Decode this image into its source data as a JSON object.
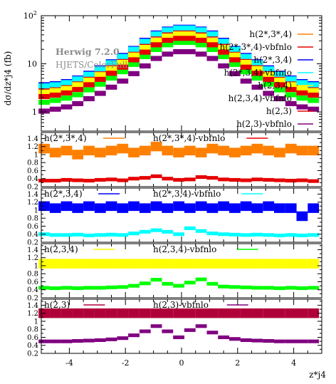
{
  "chart_data": {
    "type": "area",
    "generator": "Herwig 7.2.0",
    "subtitle": "HJETS/ColorFull",
    "ylabel": "dσ/dz*j4 (fb)",
    "xlabel": "z*j4",
    "x": [
      -4.9,
      -4.5,
      -4.1,
      -3.7,
      -3.3,
      -2.9,
      -2.5,
      -2.1,
      -1.7,
      -1.3,
      -0.9,
      -0.5,
      -0.1,
      0.3,
      0.7,
      1.1,
      1.5,
      1.9,
      2.3,
      2.7,
      3.1,
      3.5,
      3.9,
      4.3,
      4.7
    ],
    "xlim": [
      -5,
      5
    ],
    "xticks": [
      -4,
      -2,
      0,
      2,
      4
    ],
    "main_panel": {
      "yscale": "log",
      "ylim": [
        0.4,
        100
      ],
      "ytick_labels": [
        "1",
        "10",
        "10^2"
      ],
      "series": [
        {
          "name": "h(2*,3*,4)",
          "color": "#ff8000",
          "values": [
            3.4,
            3.6,
            4.0,
            4.8,
            6.0,
            7.8,
            10.5,
            14,
            20,
            29,
            41,
            50,
            55,
            55,
            50,
            41,
            29,
            20,
            14,
            10.5,
            7.8,
            6.0,
            4.8,
            4.0,
            3.6
          ]
        },
        {
          "name": "h(2*,3*,4)-vbfnlo",
          "color": "#e60000",
          "values": [
            3.3,
            3.5,
            3.9,
            4.6,
            5.8,
            7.5,
            10.1,
            13.5,
            19.3,
            28,
            40,
            48,
            53,
            53,
            48,
            40,
            28,
            19.3,
            13.5,
            10.1,
            7.5,
            5.8,
            4.6,
            3.9,
            3.5
          ]
        },
        {
          "name": "h(2*,3,4)",
          "color": "#0000ff",
          "values": [
            3.7,
            3.9,
            4.3,
            5.1,
            6.4,
            8.3,
            11.1,
            15,
            21,
            31,
            44,
            53,
            58,
            58,
            53,
            44,
            31,
            21,
            15,
            11.1,
            8.3,
            6.4,
            5.1,
            4.3,
            3.9
          ]
        },
        {
          "name": "h(2*,3,4)-vbfnlo",
          "color": "#00ffff",
          "values": [
            3.5,
            3.7,
            4.1,
            4.9,
            6.1,
            7.9,
            10.6,
            14.3,
            20.2,
            29.5,
            42,
            51,
            56,
            56,
            51,
            42,
            29.5,
            20.2,
            14.3,
            10.6,
            7.9,
            6.1,
            4.9,
            4.1,
            3.7
          ]
        },
        {
          "name": "h(2,3,4)",
          "color": "#ffff00",
          "values": [
            2.6,
            2.8,
            3.1,
            3.7,
            4.6,
            6.0,
            8.0,
            10.8,
            15.3,
            22,
            31,
            38,
            42,
            42,
            38,
            31,
            22,
            15.3,
            10.8,
            8.0,
            6.0,
            4.6,
            3.7,
            3.1,
            2.8
          ]
        },
        {
          "name": "h(2,3,4)-vbfnlo",
          "color": "#00ff00",
          "values": [
            1.6,
            1.75,
            1.95,
            2.3,
            2.9,
            3.8,
            5.1,
            6.9,
            9.8,
            14.2,
            20,
            25,
            28,
            28,
            25,
            20,
            14.2,
            9.8,
            6.9,
            5.1,
            3.8,
            2.9,
            2.3,
            1.95,
            1.75
          ]
        },
        {
          "name": "h(2,3)",
          "color": "#e60000",
          "values": [
            2.1,
            2.25,
            2.5,
            2.95,
            3.7,
            4.8,
            6.4,
            8.6,
            12.2,
            17.6,
            25,
            31,
            34,
            34,
            31,
            25,
            17.6,
            12.2,
            8.6,
            6.4,
            4.8,
            3.7,
            2.95,
            2.5,
            2.25
          ]
        },
        {
          "name": "h(2,3)-vbfnlo",
          "color": "#800080",
          "values": [
            1.05,
            1.15,
            1.28,
            1.5,
            1.9,
            2.45,
            3.3,
            4.4,
            6.3,
            9.1,
            13,
            16,
            18,
            18,
            16,
            13,
            9.1,
            6.3,
            4.4,
            3.3,
            2.45,
            1.9,
            1.5,
            1.28,
            1.15
          ]
        }
      ]
    },
    "ratio_panels": [
      {
        "ylim": [
          0.2,
          1.55
        ],
        "ytick_labels": [
          "0.2",
          "0.4",
          "0.6",
          "0.8",
          "1",
          "1.2",
          "1.4"
        ],
        "series": [
          {
            "name": "h(2*,3*,4)",
            "color": "#ff8000",
            "values": [
              1.15,
              1.05,
              1.1,
              1.0,
              1.1,
              1.05,
              1.1,
              1.15,
              1.05,
              1.1,
              1.2,
              1.1,
              1.05,
              1.1,
              1.05,
              1.15,
              1.1,
              1.05,
              1.1,
              1.15,
              1.1,
              1.05,
              1.15,
              1.1,
              1.1
            ]
          },
          {
            "name": "h(2*,3*,4)-vbfnlo",
            "color": "#e60000",
            "values": [
              0.35,
              0.35,
              0.37,
              0.36,
              0.35,
              0.37,
              0.38,
              0.36,
              0.4,
              0.42,
              0.46,
              0.4,
              0.37,
              0.38,
              0.44,
              0.42,
              0.38,
              0.37,
              0.36,
              0.38,
              0.37,
              0.36,
              0.35,
              0.36,
              0.34
            ]
          }
        ]
      },
      {
        "ylim": [
          0.2,
          1.55
        ],
        "ytick_labels": [
          "0.2",
          "0.4",
          "0.6",
          "0.8",
          "1",
          "1.2",
          "1.4"
        ],
        "series": [
          {
            "name": "h(2*,3,4)",
            "color": "#0000ff",
            "values": [
              1.1,
              1.05,
              1.1,
              1.05,
              1.1,
              1.05,
              1.1,
              1.05,
              1.1,
              1.05,
              1.1,
              1.05,
              1.1,
              1.05,
              1.1,
              1.05,
              1.1,
              1.05,
              1.1,
              1.05,
              1.1,
              1.05,
              1.05,
              0.85,
              1.05
            ]
          },
          {
            "name": "h(2*,3,4)-vbfnlo",
            "color": "#00ffff",
            "values": [
              0.4,
              0.38,
              0.38,
              0.39,
              0.37,
              0.38,
              0.39,
              0.38,
              0.42,
              0.46,
              0.5,
              0.46,
              0.4,
              0.55,
              0.48,
              0.42,
              0.4,
              0.39,
              0.38,
              0.39,
              0.38,
              0.37,
              0.38,
              0.37,
              0.38
            ]
          }
        ]
      },
      {
        "ylim": [
          0.2,
          1.55
        ],
        "ytick_labels": [
          "0.2",
          "0.4",
          "0.6",
          "0.8",
          "1",
          "1.2",
          "1.4"
        ],
        "series": [
          {
            "name": "h(2,3,4)",
            "color": "#ffff00",
            "values": [
              1.05,
              1.05,
              1.05,
              1.05,
              1.05,
              1.05,
              1.05,
              1.05,
              1.05,
              1.05,
              1.05,
              1.05,
              1.05,
              1.05,
              1.05,
              1.05,
              1.05,
              1.05,
              1.05,
              1.05,
              1.05,
              1.05,
              1.05,
              1.05,
              1.05
            ]
          },
          {
            "name": "h(2,3,4)-vbfnlo",
            "color": "#00ff00",
            "values": [
              0.45,
              0.44,
              0.45,
              0.44,
              0.45,
              0.45,
              0.46,
              0.47,
              0.5,
              0.56,
              0.65,
              0.55,
              0.5,
              0.58,
              0.66,
              0.55,
              0.48,
              0.47,
              0.46,
              0.45,
              0.45,
              0.44,
              0.45,
              0.44,
              0.45
            ]
          }
        ]
      },
      {
        "ylim": [
          0.2,
          1.55
        ],
        "ytick_labels": [
          "0.2",
          "0.4",
          "0.6",
          "0.8",
          "1",
          "1.2",
          "1.4"
        ],
        "series": [
          {
            "name": "h(2,3)",
            "color": "#b0003a",
            "values": [
              1.2,
              1.2,
              1.2,
              1.2,
              1.2,
              1.2,
              1.2,
              1.2,
              1.2,
              1.2,
              1.2,
              1.2,
              1.2,
              1.2,
              1.2,
              1.2,
              1.2,
              1.2,
              1.2,
              1.2,
              1.2,
              1.2,
              1.2,
              1.2,
              1.2
            ]
          },
          {
            "name": "h(2,3)-vbfnlo",
            "color": "#800080",
            "values": [
              0.5,
              0.5,
              0.5,
              0.51,
              0.52,
              0.53,
              0.55,
              0.58,
              0.65,
              0.75,
              0.88,
              0.75,
              0.6,
              0.78,
              0.88,
              0.72,
              0.6,
              0.56,
              0.53,
              0.52,
              0.51,
              0.5,
              0.5,
              0.5,
              0.5
            ]
          }
        ]
      }
    ]
  }
}
